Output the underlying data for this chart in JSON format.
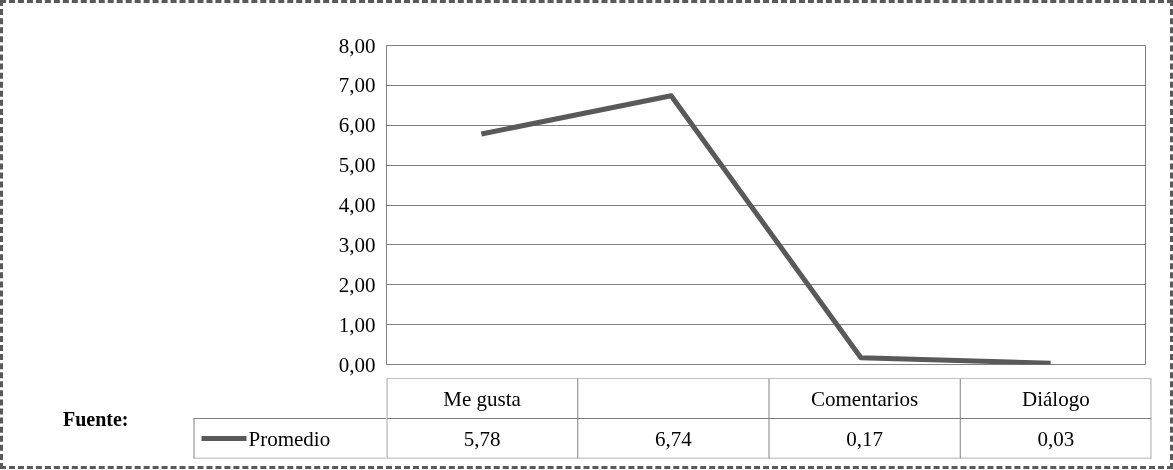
{
  "chart_data": {
    "type": "line",
    "categories": [
      "Me gusta",
      null,
      "Comentarios",
      "Diálogo"
    ],
    "series": [
      {
        "name": "Promedio",
        "color": "#595959",
        "values": [
          5.78,
          6.74,
          0.17,
          0.03
        ],
        "value_labels": [
          "5,78",
          "6,74",
          "0,17",
          "0,03"
        ]
      }
    ],
    "ylim": [
      0,
      8
    ],
    "yticks": [
      {
        "value": 0,
        "label": "0,00"
      },
      {
        "value": 1,
        "label": "1,00"
      },
      {
        "value": 2,
        "label": "2,00"
      },
      {
        "value": 3,
        "label": "3,00"
      },
      {
        "value": 4,
        "label": "4,00"
      },
      {
        "value": 5,
        "label": "5,00"
      },
      {
        "value": 6,
        "label": "6,00"
      },
      {
        "value": 7,
        "label": "7,00"
      },
      {
        "value": 8,
        "label": "8,00"
      }
    ],
    "grid": "y",
    "legend": "bottom",
    "marker": "none",
    "line_style": "solid",
    "annotations": [
      "Fuente:"
    ]
  }
}
